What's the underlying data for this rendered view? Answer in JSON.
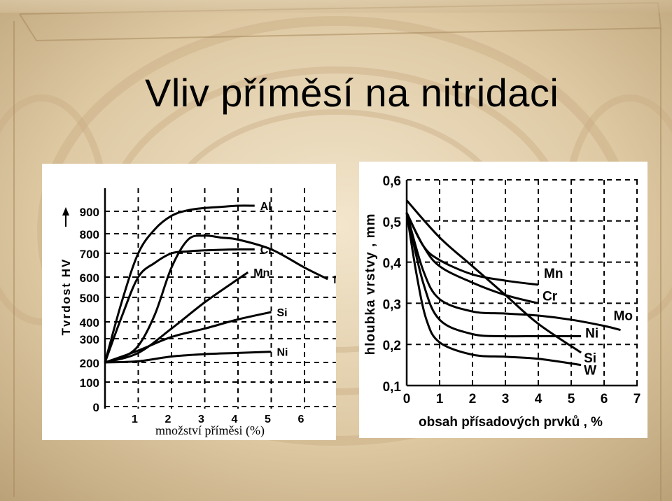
{
  "slide": {
    "title": "Vliv příměsí na nitridaci"
  },
  "chart_data": [
    {
      "type": "line",
      "title": "",
      "ylabel": "Tvrdost HV",
      "xlabel": "množství příměsi (%)",
      "xlim": [
        0,
        7
      ],
      "ylim": [
        0,
        1000
      ],
      "x_ticks": [
        "1",
        "2",
        "3",
        "4",
        "5",
        "6"
      ],
      "y_ticks": [
        "0",
        "100",
        "200",
        "300",
        "400",
        "500",
        "600",
        "700",
        "800",
        "900"
      ],
      "grid": true,
      "series": [
        {
          "name": "Al",
          "x": [
            0,
            0.5,
            1,
            1.5,
            2,
            2.5,
            3,
            3.5,
            4,
            4.5
          ],
          "y": [
            200,
            480,
            700,
            820,
            880,
            905,
            915,
            920,
            925,
            925
          ]
        },
        {
          "name": "Mo",
          "x": [
            0,
            0.5,
            1,
            1.5,
            2,
            2.5,
            3,
            3.5,
            4,
            5,
            6,
            6.7
          ],
          "y": [
            200,
            220,
            270,
            430,
            640,
            770,
            790,
            780,
            770,
            720,
            640,
            590
          ]
        },
        {
          "name": "Cr",
          "x": [
            0,
            0.5,
            1,
            1.5,
            2,
            2.5,
            3,
            3.5,
            4,
            4.5
          ],
          "y": [
            200,
            420,
            600,
            660,
            700,
            710,
            715,
            718,
            720,
            720
          ]
        },
        {
          "name": "Mn",
          "x": [
            0,
            1,
            2,
            3,
            4,
            4.3
          ],
          "y": [
            200,
            240,
            360,
            480,
            590,
            620
          ]
        },
        {
          "name": "Si",
          "x": [
            0,
            1,
            2,
            3,
            4,
            5
          ],
          "y": [
            200,
            250,
            310,
            360,
            410,
            440
          ]
        },
        {
          "name": "Ni",
          "x": [
            0,
            1,
            2,
            3,
            4,
            5
          ],
          "y": [
            200,
            205,
            225,
            235,
            240,
            245
          ]
        }
      ]
    },
    {
      "type": "line",
      "title": "",
      "ylabel": "hloubka vrstvy , mm",
      "xlabel": "obsah přísadových prvků , %",
      "xlim": [
        0,
        7
      ],
      "ylim": [
        0.1,
        0.6
      ],
      "x_ticks": [
        "0",
        "1",
        "2",
        "3",
        "4",
        "5",
        "6",
        "7"
      ],
      "y_ticks": [
        "0,1",
        "0,2",
        "0,3",
        "0,4",
        "0,5",
        "0,6"
      ],
      "grid": true,
      "series": [
        {
          "name": "Mn",
          "x": [
            0,
            0.5,
            1,
            2,
            3,
            4
          ],
          "y": [
            0.52,
            0.44,
            0.405,
            0.37,
            0.355,
            0.345
          ]
        },
        {
          "name": "Cr",
          "x": [
            0,
            0.5,
            1,
            2,
            3,
            4
          ],
          "y": [
            0.52,
            0.44,
            0.39,
            0.35,
            0.32,
            0.3
          ]
        },
        {
          "name": "Mo",
          "x": [
            0,
            0.5,
            1,
            2,
            3,
            4,
            5,
            6,
            6.5
          ],
          "y": [
            0.52,
            0.38,
            0.31,
            0.28,
            0.275,
            0.27,
            0.26,
            0.245,
            0.235
          ]
        },
        {
          "name": "Ni",
          "x": [
            0,
            0.5,
            1,
            2,
            3,
            4,
            5.3
          ],
          "y": [
            0.52,
            0.35,
            0.26,
            0.225,
            0.22,
            0.22,
            0.22
          ]
        },
        {
          "name": "Si",
          "x": [
            0,
            1,
            2,
            3,
            4,
            5.3
          ],
          "y": [
            0.55,
            0.46,
            0.39,
            0.32,
            0.25,
            0.18
          ]
        },
        {
          "name": "W",
          "x": [
            0,
            0.3,
            0.6,
            1,
            2,
            3,
            4,
            5.3
          ],
          "y": [
            0.52,
            0.37,
            0.26,
            0.205,
            0.175,
            0.17,
            0.165,
            0.15
          ]
        }
      ]
    }
  ]
}
